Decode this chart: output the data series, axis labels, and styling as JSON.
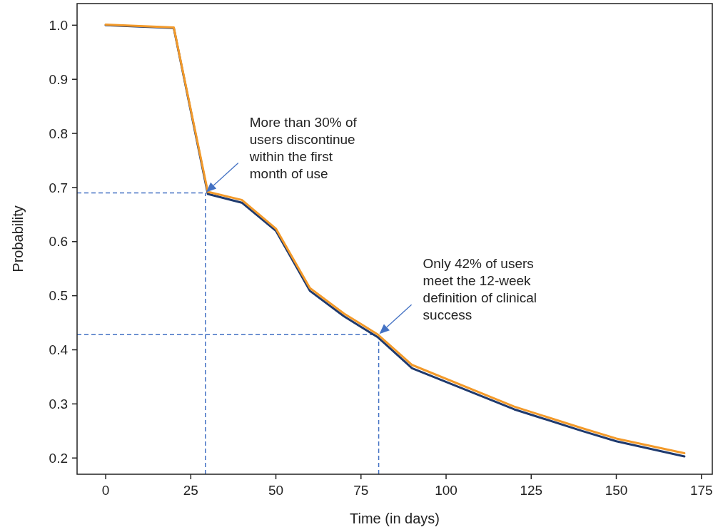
{
  "chart_data": {
    "type": "line",
    "xlabel": "Time (in days)",
    "ylabel": "Probability",
    "x": [
      0,
      20,
      30,
      40,
      50,
      60,
      70,
      80,
      90,
      120,
      140,
      150,
      170
    ],
    "series": [
      {
        "color": "#1f3a6e",
        "values": [
          1.0,
          0.995,
          0.688,
          0.672,
          0.62,
          0.509,
          0.462,
          0.423,
          0.366,
          0.29,
          0.25,
          0.231,
          0.203
        ]
      },
      {
        "color": "#f39a2a",
        "values": [
          1.001,
          0.996,
          0.692,
          0.677,
          0.624,
          0.514,
          0.467,
          0.428,
          0.372,
          0.295,
          0.255,
          0.236,
          0.209
        ]
      }
    ],
    "xlim": [
      -8.4,
      178.2
    ],
    "ylim": [
      0.17,
      1.04
    ],
    "xticks": [
      0,
      25,
      50,
      75,
      100,
      125,
      150,
      175
    ],
    "yticks": [
      {
        "value": 0.2,
        "label": "0.2"
      },
      {
        "value": 0.3,
        "label": "0.3"
      },
      {
        "value": 0.4,
        "label": "0.4"
      },
      {
        "value": 0.5,
        "label": "0.5"
      },
      {
        "value": 0.6,
        "label": "0.6"
      },
      {
        "value": 0.7,
        "label": "0.7"
      },
      {
        "value": 0.8,
        "label": "0.8"
      },
      {
        "value": 0.9,
        "label": "0.9"
      },
      {
        "value": 1.0,
        "label": "1.0"
      }
    ],
    "ref_lines": [
      {
        "axis": "y",
        "value": 0.69,
        "color": "#4472c4",
        "line_style": "dashed"
      },
      {
        "axis": "x",
        "value": 29.3,
        "color": "#4472c4",
        "line_style": "dashed"
      },
      {
        "axis": "y",
        "value": 0.428,
        "color": "#4472c4",
        "line_style": "dashed"
      },
      {
        "axis": "x",
        "value": 80.2,
        "color": "#4472c4",
        "line_style": "dashed"
      }
    ],
    "annotations": [
      "More than 30% of\nusers discontinue\nwithin the first\nmonth of use",
      "Only 42% of users\nmeet the 12-week\ndefinition of clinical\nsuccess"
    ],
    "grid": false,
    "marker": "none",
    "line_style": "solid"
  }
}
